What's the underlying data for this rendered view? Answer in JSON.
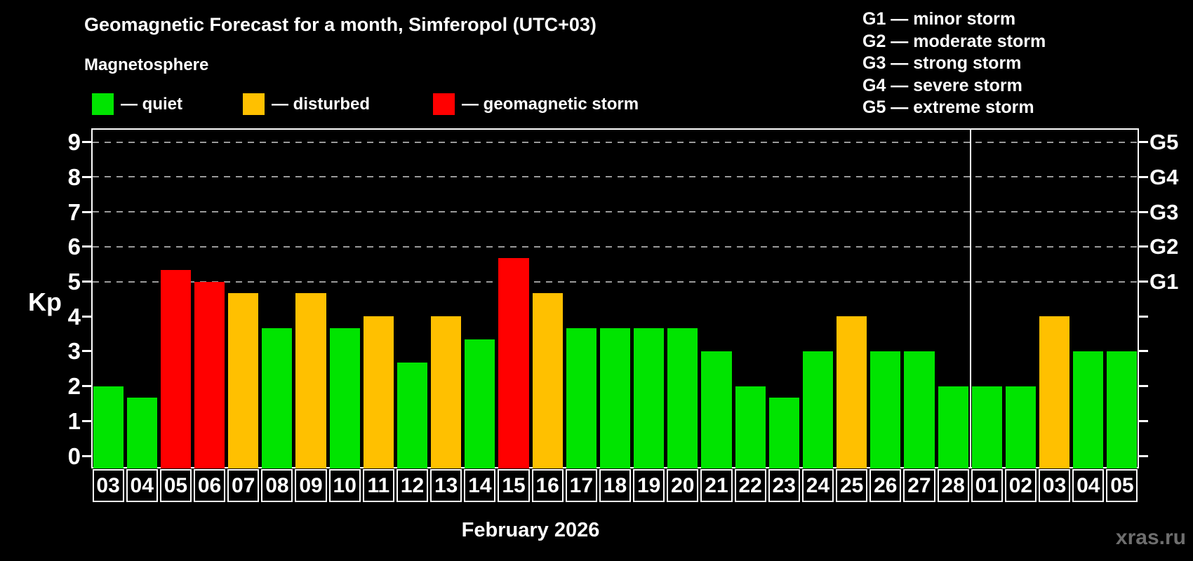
{
  "title": "Geomagnetic Forecast for a month, Simferopol (UTC+03)",
  "subtitle": "Magnetosphere",
  "watermark": "xras.ru",
  "legend": {
    "items": [
      {
        "key": "quiet",
        "label": "— quiet",
        "color": "#00e400"
      },
      {
        "key": "disturbed",
        "label": "— disturbed",
        "color": "#ffc000"
      },
      {
        "key": "storm",
        "label": "— geomagnetic storm",
        "color": "#ff0000"
      }
    ]
  },
  "storm_scale_legend": [
    "G1 — minor storm",
    "G2 — moderate storm",
    "G3 — strong storm",
    "G4 — severe storm",
    "G5 — extreme storm"
  ],
  "chart_data": {
    "type": "bar",
    "title": "Geomagnetic Forecast for a month, Simferopol (UTC+03)",
    "ylabel": "Kp",
    "xlabel": "February 2026",
    "ylim": [
      0,
      9.4
    ],
    "yticks": [
      0,
      1,
      2,
      3,
      4,
      5,
      6,
      7,
      8,
      9
    ],
    "gridlines_kp": [
      5,
      6,
      7,
      8,
      9
    ],
    "grid": "dashed-horizontal",
    "legend_position": "top-left",
    "right_axis_labels": [
      {
        "label": "G1",
        "kp": 5
      },
      {
        "label": "G2",
        "kp": 6
      },
      {
        "label": "G3",
        "kp": 7
      },
      {
        "label": "G4",
        "kp": 8
      },
      {
        "label": "G5",
        "kp": 9
      }
    ],
    "month_separator_after_index": 25,
    "bars": [
      {
        "day": "03",
        "value": 2.0,
        "status": "quiet"
      },
      {
        "day": "04",
        "value": 1.67,
        "status": "quiet"
      },
      {
        "day": "05",
        "value": 5.33,
        "status": "storm"
      },
      {
        "day": "06",
        "value": 5.0,
        "status": "storm"
      },
      {
        "day": "07",
        "value": 4.67,
        "status": "disturbed"
      },
      {
        "day": "08",
        "value": 3.67,
        "status": "quiet"
      },
      {
        "day": "09",
        "value": 4.67,
        "status": "disturbed"
      },
      {
        "day": "10",
        "value": 3.67,
        "status": "quiet"
      },
      {
        "day": "11",
        "value": 4.0,
        "status": "disturbed"
      },
      {
        "day": "12",
        "value": 2.67,
        "status": "quiet"
      },
      {
        "day": "13",
        "value": 4.0,
        "status": "disturbed"
      },
      {
        "day": "14",
        "value": 3.33,
        "status": "quiet"
      },
      {
        "day": "15",
        "value": 5.67,
        "status": "storm"
      },
      {
        "day": "16",
        "value": 4.67,
        "status": "disturbed"
      },
      {
        "day": "17",
        "value": 3.67,
        "status": "quiet"
      },
      {
        "day": "18",
        "value": 3.67,
        "status": "quiet"
      },
      {
        "day": "19",
        "value": 3.67,
        "status": "quiet"
      },
      {
        "day": "20",
        "value": 3.67,
        "status": "quiet"
      },
      {
        "day": "21",
        "value": 3.0,
        "status": "quiet"
      },
      {
        "day": "22",
        "value": 2.0,
        "status": "quiet"
      },
      {
        "day": "23",
        "value": 1.67,
        "status": "quiet"
      },
      {
        "day": "24",
        "value": 3.0,
        "status": "quiet"
      },
      {
        "day": "25",
        "value": 4.0,
        "status": "disturbed"
      },
      {
        "day": "26",
        "value": 3.0,
        "status": "quiet"
      },
      {
        "day": "27",
        "value": 3.0,
        "status": "quiet"
      },
      {
        "day": "28",
        "value": 2.0,
        "status": "quiet"
      },
      {
        "day": "01",
        "value": 2.0,
        "status": "quiet"
      },
      {
        "day": "02",
        "value": 2.0,
        "status": "quiet"
      },
      {
        "day": "03",
        "value": 4.0,
        "status": "disturbed"
      },
      {
        "day": "04",
        "value": 3.0,
        "status": "quiet"
      },
      {
        "day": "05",
        "value": 3.0,
        "status": "quiet"
      }
    ]
  }
}
